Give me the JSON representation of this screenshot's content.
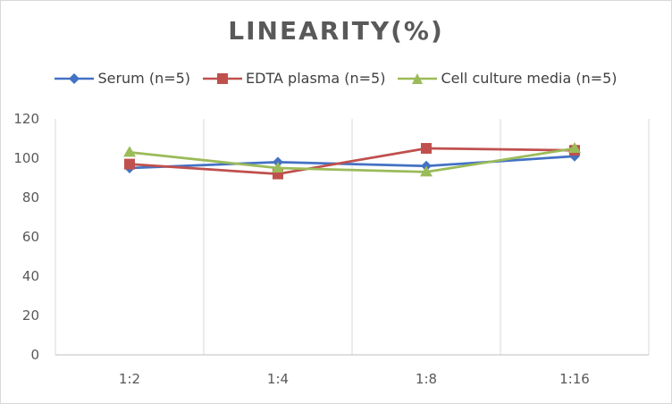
{
  "chart_data": {
    "type": "line",
    "title": "LINEARITY(%)",
    "xlabel": "",
    "ylabel": "",
    "categories": [
      "1:2",
      "1:4",
      "1:8",
      "1:16"
    ],
    "ylim": [
      0,
      120
    ],
    "yticks": [
      0,
      20,
      40,
      60,
      80,
      100,
      120
    ],
    "grid": "vertical",
    "legend_position": "top",
    "series": [
      {
        "name": "Serum (n=5)",
        "color": "#4472c4",
        "marker": "diamond",
        "values": [
          95,
          98,
          96,
          101
        ]
      },
      {
        "name": "EDTA plasma (n=5)",
        "color": "#c0504d",
        "marker": "square",
        "values": [
          97,
          92,
          105,
          104
        ]
      },
      {
        "name": "Cell culture media (n=5)",
        "color": "#9bbb59",
        "marker": "triangle",
        "values": [
          103,
          95,
          93,
          105
        ]
      }
    ]
  }
}
